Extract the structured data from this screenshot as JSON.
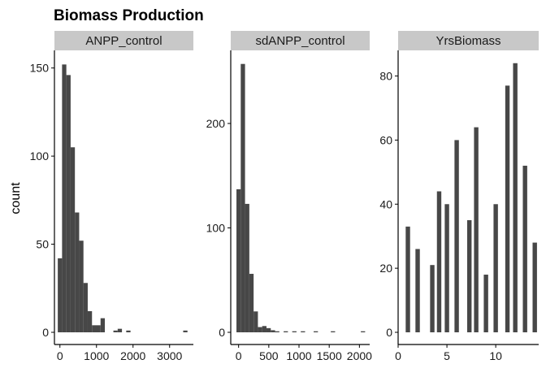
{
  "figure": {
    "title": "Biomass Production",
    "ylabel": "count",
    "bar_color": "#474747",
    "strip_color": "#c8c8c8"
  },
  "chart_data": [
    {
      "type": "bar",
      "panel": "ANPP_control",
      "xlim": [
        -150,
        3650
      ],
      "ylim": [
        0,
        160
      ],
      "xticks": [
        0,
        1000,
        2000,
        3000
      ],
      "yticks": [
        0,
        50,
        100,
        150
      ],
      "bin_width": 117,
      "bins": [
        {
          "x": 0,
          "count": 42
        },
        {
          "x": 117,
          "count": 152
        },
        {
          "x": 234,
          "count": 146
        },
        {
          "x": 351,
          "count": 105
        },
        {
          "x": 468,
          "count": 68
        },
        {
          "x": 585,
          "count": 52
        },
        {
          "x": 702,
          "count": 28
        },
        {
          "x": 819,
          "count": 12
        },
        {
          "x": 936,
          "count": 4
        },
        {
          "x": 1053,
          "count": 4
        },
        {
          "x": 1170,
          "count": 8
        },
        {
          "x": 1287,
          "count": 0
        },
        {
          "x": 1404,
          "count": 0
        },
        {
          "x": 1521,
          "count": 1
        },
        {
          "x": 1638,
          "count": 2
        },
        {
          "x": 1755,
          "count": 0
        },
        {
          "x": 1872,
          "count": 1
        },
        {
          "x": 3430,
          "count": 1
        }
      ]
    },
    {
      "type": "bar",
      "panel": "sdANPP_control",
      "xlim": [
        -130,
        2170
      ],
      "ylim": [
        0,
        270
      ],
      "xticks": [
        0,
        500,
        1000,
        1500,
        2000
      ],
      "yticks": [
        0,
        100,
        200
      ],
      "bin_width": 71,
      "bins": [
        {
          "x": 0,
          "count": 137
        },
        {
          "x": 71,
          "count": 257
        },
        {
          "x": 142,
          "count": 123
        },
        {
          "x": 213,
          "count": 56
        },
        {
          "x": 284,
          "count": 20
        },
        {
          "x": 355,
          "count": 5
        },
        {
          "x": 426,
          "count": 6
        },
        {
          "x": 497,
          "count": 4
        },
        {
          "x": 568,
          "count": 2
        },
        {
          "x": 639,
          "count": 1
        },
        {
          "x": 781,
          "count": 1
        },
        {
          "x": 923,
          "count": 1
        },
        {
          "x": 1065,
          "count": 1
        },
        {
          "x": 1278,
          "count": 1
        },
        {
          "x": 1562,
          "count": 1
        },
        {
          "x": 2059,
          "count": 1
        }
      ]
    },
    {
      "type": "bar",
      "panel": "YrsBiomass",
      "xlim": [
        0,
        14.4
      ],
      "ylim": [
        0,
        88
      ],
      "xticks": [
        0,
        5,
        10
      ],
      "yticks": [
        0,
        20,
        40,
        60,
        80
      ],
      "bin_width": 0.45,
      "bins": [
        {
          "x": 1,
          "count": 33
        },
        {
          "x": 2,
          "count": 26
        },
        {
          "x": 3.5,
          "count": 21
        },
        {
          "x": 4.2,
          "count": 44
        },
        {
          "x": 5,
          "count": 40
        },
        {
          "x": 6,
          "count": 60
        },
        {
          "x": 7.3,
          "count": 35
        },
        {
          "x": 8,
          "count": 64
        },
        {
          "x": 9,
          "count": 18
        },
        {
          "x": 10,
          "count": 40
        },
        {
          "x": 11.2,
          "count": 77
        },
        {
          "x": 12,
          "count": 84
        },
        {
          "x": 13,
          "count": 52
        },
        {
          "x": 14,
          "count": 28
        }
      ]
    }
  ]
}
